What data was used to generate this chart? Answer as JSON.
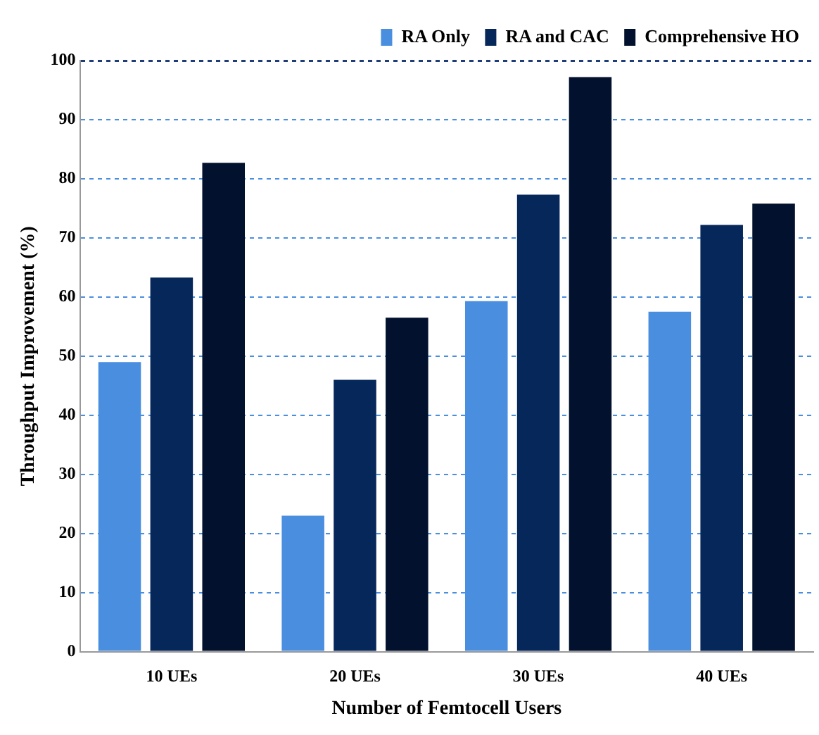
{
  "chart_data": {
    "type": "bar",
    "xlabel": "Number of Femtocell Users",
    "ylabel": "Throughput Improvement (%)",
    "categories": [
      "10 UEs",
      "20 UEs",
      "30 UEs",
      "40 UEs"
    ],
    "series": [
      {
        "name": "RA Only",
        "color": "#4a8ee0",
        "values": [
          49,
          23,
          59.3,
          57.5
        ]
      },
      {
        "name": "RA and CAC",
        "color": "#06275a",
        "values": [
          63.3,
          46,
          77.3,
          72.2
        ]
      },
      {
        "name": "Comprehensive HO",
        "color": "#02112e",
        "values": [
          82.7,
          56.5,
          97.2,
          75.8
        ]
      }
    ],
    "ylim": [
      0,
      100
    ],
    "yticks": [
      0,
      10,
      20,
      30,
      40,
      50,
      60,
      70,
      80,
      90,
      100
    ],
    "grid": "y",
    "legend": "top"
  }
}
